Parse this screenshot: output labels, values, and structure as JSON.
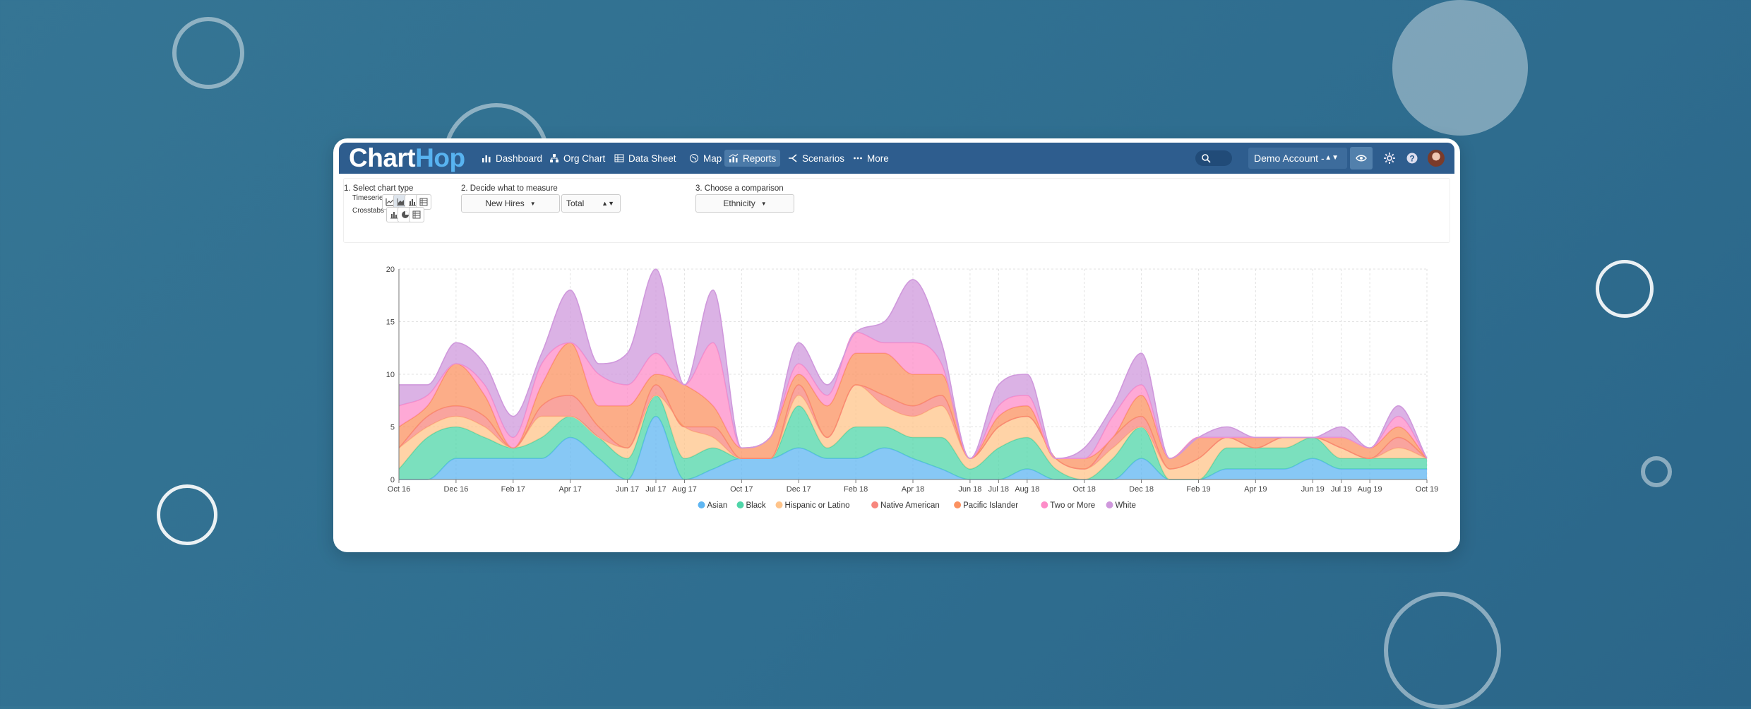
{
  "app": {
    "logo_left": "Chart",
    "logo_right": "Hop",
    "nav": [
      {
        "label": "Dashboard",
        "icon": "bar-chart-icon"
      },
      {
        "label": "Org Chart",
        "icon": "org-chart-icon"
      },
      {
        "label": "Data Sheet",
        "icon": "table-icon"
      },
      {
        "label": "Map",
        "icon": "globe-icon"
      },
      {
        "label": "Reports",
        "icon": "reports-icon",
        "active": true
      },
      {
        "label": "Scenarios",
        "icon": "scenarios-icon"
      },
      {
        "label": "More",
        "icon": "more-icon"
      }
    ],
    "account": "Demo Account -"
  },
  "controls": {
    "step1": "1. Select chart type",
    "timeseries": "Timeseries",
    "crosstabs": "Crosstabs",
    "step2": "2. Decide what to measure",
    "measure": "New Hires",
    "aggregate": "Total",
    "step3": "3. Choose a comparison",
    "comparison": "Ethnicity"
  },
  "colors": {
    "Asian": "#5fb6f2",
    "Black": "#4fd5a8",
    "Hispanic or Latino": "#ffc48a",
    "Native American": "#f7867d",
    "Pacific Islander": "#fb9160",
    "Two or More": "#fd8cc8",
    "White": "#cf98dc"
  },
  "chart_data": {
    "type": "area",
    "stacked": true,
    "ylim": [
      0,
      20
    ],
    "y_ticks": [
      0,
      5,
      10,
      15,
      20
    ],
    "x_labels": [
      {
        "label": "Oct 16",
        "i": 0
      },
      {
        "label": "Dec 16",
        "i": 2
      },
      {
        "label": "Feb 17",
        "i": 4
      },
      {
        "label": "Apr 17",
        "i": 6
      },
      {
        "label": "Jun 17",
        "i": 8
      },
      {
        "label": "Jul 17",
        "i": 9
      },
      {
        "label": "Aug 17",
        "i": 10
      },
      {
        "label": "Oct 17",
        "i": 12
      },
      {
        "label": "Dec 17",
        "i": 14
      },
      {
        "label": "Feb 18",
        "i": 16
      },
      {
        "label": "Apr 18",
        "i": 18
      },
      {
        "label": "Jun 18",
        "i": 20
      },
      {
        "label": "Jul 18",
        "i": 21
      },
      {
        "label": "Aug 18",
        "i": 22
      },
      {
        "label": "Oct 18",
        "i": 24
      },
      {
        "label": "Dec 18",
        "i": 26
      },
      {
        "label": "Feb 19",
        "i": 28
      },
      {
        "label": "Apr 19",
        "i": 30
      },
      {
        "label": "Jun 19",
        "i": 32
      },
      {
        "label": "Jul 19",
        "i": 33
      },
      {
        "label": "Aug 19",
        "i": 34
      },
      {
        "label": "Oct 19",
        "i": 36
      }
    ],
    "n_points": 37,
    "series": [
      {
        "name": "Asian",
        "values": [
          0,
          0,
          2,
          2,
          2,
          2,
          4,
          2,
          0,
          6,
          0,
          1,
          2,
          2,
          3,
          2,
          2,
          3,
          2,
          1,
          0,
          0,
          1,
          0,
          0,
          0,
          2,
          0,
          0,
          1,
          1,
          1,
          2,
          1,
          1,
          1,
          1
        ]
      },
      {
        "name": "Black",
        "values": [
          1,
          4,
          3,
          2,
          1,
          2,
          2,
          2,
          2,
          2,
          2,
          2,
          0,
          0,
          4,
          1,
          3,
          2,
          2,
          3,
          1,
          3,
          3,
          1,
          0,
          2,
          3,
          0,
          0,
          2,
          2,
          2,
          2,
          1,
          1,
          1,
          1
        ]
      },
      {
        "name": "Hispanic or Latino",
        "values": [
          2,
          1,
          1,
          1,
          0,
          2,
          0,
          0,
          1,
          0,
          3,
          1,
          0,
          0,
          1,
          1,
          4,
          2,
          2,
          3,
          1,
          2,
          2,
          1,
          1,
          1,
          0,
          1,
          2,
          1,
          0,
          1,
          0,
          1,
          0,
          1,
          0
        ]
      },
      {
        "name": "Native American",
        "values": [
          0,
          1,
          1,
          1,
          0,
          1,
          2,
          1,
          0,
          1,
          0,
          1,
          0,
          0,
          1,
          0,
          0,
          1,
          1,
          1,
          0,
          0,
          0,
          0,
          0,
          1,
          1,
          0,
          0,
          0,
          0,
          0,
          0,
          0,
          0,
          1,
          0
        ]
      },
      {
        "name": "Pacific Islander",
        "values": [
          2,
          1,
          4,
          2,
          0,
          2,
          5,
          2,
          4,
          1,
          4,
          2,
          1,
          2,
          1,
          3,
          3,
          4,
          3,
          2,
          0,
          1,
          1,
          0,
          1,
          0,
          2,
          1,
          2,
          0,
          1,
          0,
          0,
          1,
          1,
          1,
          0
        ]
      },
      {
        "name": "Two or More",
        "values": [
          2,
          1,
          0,
          1,
          1,
          2,
          0,
          3,
          2,
          2,
          0,
          6,
          0,
          0,
          1,
          1,
          2,
          1,
          3,
          1,
          0,
          1,
          1,
          0,
          0,
          2,
          1,
          0,
          0,
          0,
          0,
          0,
          0,
          0,
          0,
          1,
          0
        ]
      },
      {
        "name": "White",
        "values": [
          2,
          1,
          2,
          2,
          2,
          1,
          5,
          1,
          3,
          8,
          0,
          5,
          0,
          0,
          2,
          1,
          0,
          2,
          6,
          2,
          0,
          2,
          2,
          0,
          1,
          1,
          3,
          0,
          0,
          1,
          0,
          0,
          0,
          1,
          0,
          1,
          0
        ]
      }
    ]
  }
}
